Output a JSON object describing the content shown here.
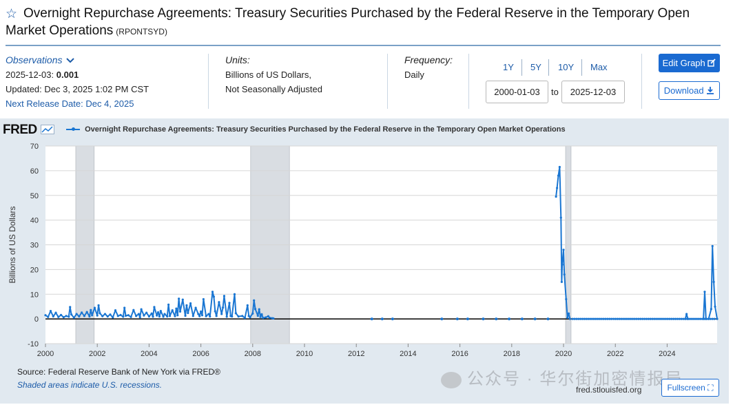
{
  "header": {
    "title_line1": "Overnight Repurchase Agreements: Treasury Securities Purchased by the Federal Reserve in the Temporary Open",
    "title_line2": "Market Operations",
    "series_id": "(RPONTSYD)"
  },
  "observations": {
    "label": "Observations",
    "date": "2025-12-03:",
    "value": "0.001",
    "updated": "Updated: Dec 3, 2025 1:02 PM CST",
    "next_release": "Next Release Date: Dec 4, 2025"
  },
  "units": {
    "label": "Units:",
    "line1": "Billions of US Dollars,",
    "line2": "Not Seasonally Adjusted"
  },
  "frequency": {
    "label": "Frequency:",
    "value": "Daily"
  },
  "range": {
    "links": [
      "1Y",
      "5Y",
      "10Y",
      "Max"
    ],
    "start": "2000-01-03",
    "to": "to",
    "end": "2025-12-03"
  },
  "buttons": {
    "edit": "Edit Graph",
    "download": "Download",
    "fullscreen": "Fullscreen"
  },
  "chart_header": {
    "logo": "FRED",
    "legend": "Overnight Repurchase Agreements: Treasury Securities Purchased by the Federal Reserve in the Temporary Open Market Operations"
  },
  "footer": {
    "source": "Source: Federal Reserve Bank of New York via FRED®",
    "shaded": "Shaded areas indicate U.S. recessions.",
    "url": "fred.stlouisfed.org",
    "watermark": "公众号 · 华尔街加密情报局"
  },
  "colors": {
    "series": "#1a76d2",
    "accent": "#1a6ad1",
    "panel": "#e1e9f0",
    "recession": "#d9dde2"
  },
  "chart_data": {
    "type": "line",
    "ylabel": "Billions of US Dollars",
    "xlabel": "",
    "xlim": [
      2000.0,
      2025.93
    ],
    "ylim": [
      -10,
      70
    ],
    "x_ticks": [
      "2000",
      "2002",
      "2004",
      "2006",
      "2008",
      "2010",
      "2012",
      "2014",
      "2016",
      "2018",
      "2020",
      "2022",
      "2024"
    ],
    "y_ticks": [
      "-10",
      "0",
      "10",
      "20",
      "30",
      "40",
      "50",
      "60",
      "70"
    ],
    "grid": true,
    "legend_position": "top-left",
    "recessions": [
      [
        2001.17,
        2001.88
      ],
      [
        2007.92,
        2009.42
      ],
      [
        2020.08,
        2020.29
      ]
    ],
    "series": [
      {
        "name": "Overnight Repurchase Agreements: Treasury Securities Purchased by the Federal Reserve in the Temporary Open Market Operations",
        "points": [
          [
            2000.0,
            1.5
          ],
          [
            2000.1,
            0.8
          ],
          [
            2000.2,
            3.2
          ],
          [
            2000.3,
            1.0
          ],
          [
            2000.4,
            2.5
          ],
          [
            2000.5,
            0.8
          ],
          [
            2000.6,
            1.6
          ],
          [
            2000.7,
            0.7
          ],
          [
            2000.8,
            1.2
          ],
          [
            2000.9,
            0.9
          ],
          [
            2000.95,
            4.8
          ],
          [
            2001.0,
            1.8
          ],
          [
            2001.1,
            0.5
          ],
          [
            2001.2,
            2.0
          ],
          [
            2001.3,
            1.0
          ],
          [
            2001.4,
            2.6
          ],
          [
            2001.5,
            1.2
          ],
          [
            2001.6,
            2.8
          ],
          [
            2001.7,
            1.0
          ],
          [
            2001.75,
            3.6
          ],
          [
            2001.8,
            1.5
          ],
          [
            2001.9,
            4.5
          ],
          [
            2002.0,
            1.4
          ],
          [
            2002.05,
            5.5
          ],
          [
            2002.1,
            2.3
          ],
          [
            2002.2,
            1.1
          ],
          [
            2002.3,
            2.0
          ],
          [
            2002.4,
            1.0
          ],
          [
            2002.5,
            1.8
          ],
          [
            2002.6,
            0.6
          ],
          [
            2002.7,
            3.5
          ],
          [
            2002.8,
            1.2
          ],
          [
            2002.9,
            1.6
          ],
          [
            2003.0,
            0.9
          ],
          [
            2003.05,
            4.5
          ],
          [
            2003.1,
            1.3
          ],
          [
            2003.2,
            1.5
          ],
          [
            2003.3,
            0.8
          ],
          [
            2003.4,
            3.6
          ],
          [
            2003.5,
            1.2
          ],
          [
            2003.6,
            2.0
          ],
          [
            2003.65,
            0.7
          ],
          [
            2003.7,
            3.9
          ],
          [
            2003.8,
            1.4
          ],
          [
            2003.9,
            2.5
          ],
          [
            2004.0,
            1.0
          ],
          [
            2004.1,
            2.2
          ],
          [
            2004.15,
            0.9
          ],
          [
            2004.2,
            4.8
          ],
          [
            2004.3,
            1.4
          ],
          [
            2004.35,
            2.7
          ],
          [
            2004.4,
            1.0
          ],
          [
            2004.45,
            3.2
          ],
          [
            2004.55,
            0.9
          ],
          [
            2004.6,
            2.0
          ],
          [
            2004.7,
            1.0
          ],
          [
            2004.75,
            5.8
          ],
          [
            2004.8,
            1.2
          ],
          [
            2004.9,
            3.5
          ],
          [
            2005.0,
            1.1
          ],
          [
            2005.05,
            4.2
          ],
          [
            2005.1,
            1.5
          ],
          [
            2005.15,
            8.2
          ],
          [
            2005.2,
            3.0
          ],
          [
            2005.3,
            7.8
          ],
          [
            2005.4,
            1.3
          ],
          [
            2005.45,
            5.5
          ],
          [
            2005.5,
            2.4
          ],
          [
            2005.6,
            6.3
          ],
          [
            2005.7,
            1.2
          ],
          [
            2005.8,
            4.5
          ],
          [
            2005.9,
            2.0
          ],
          [
            2005.95,
            1.1
          ],
          [
            2006.0,
            3.0
          ],
          [
            2006.05,
            1.5
          ],
          [
            2006.1,
            8.0
          ],
          [
            2006.2,
            1.1
          ],
          [
            2006.3,
            2.0
          ],
          [
            2006.35,
            1.0
          ],
          [
            2006.45,
            11.0
          ],
          [
            2006.5,
            9.0
          ],
          [
            2006.55,
            3.1
          ],
          [
            2006.6,
            1.2
          ],
          [
            2006.7,
            6.8
          ],
          [
            2006.8,
            2.0
          ],
          [
            2006.85,
            4.6
          ],
          [
            2006.9,
            9.3
          ],
          [
            2007.0,
            0.9
          ],
          [
            2007.1,
            6.5
          ],
          [
            2007.15,
            1.2
          ],
          [
            2007.2,
            1.0
          ],
          [
            2007.3,
            10.0
          ],
          [
            2007.35,
            2.3
          ],
          [
            2007.45,
            1.0
          ],
          [
            2007.6,
            1.2
          ],
          [
            2007.7,
            0.4
          ],
          [
            2007.8,
            5.5
          ],
          [
            2007.85,
            1.2
          ],
          [
            2007.9,
            0.7
          ],
          [
            2008.0,
            2.2
          ],
          [
            2008.05,
            7.5
          ],
          [
            2008.1,
            4.0
          ],
          [
            2008.2,
            1.3
          ],
          [
            2008.25,
            3.9
          ],
          [
            2008.3,
            0.8
          ],
          [
            2008.35,
            1.9
          ],
          [
            2008.4,
            0.4
          ],
          [
            2008.5,
            0.6
          ],
          [
            2008.6,
            1.1
          ],
          [
            2008.65,
            0.5
          ],
          [
            2008.75,
            0.3
          ],
          [
            2008.8,
            0.2
          ],
          [
            2019.71,
            49.5
          ],
          [
            2019.75,
            53.0
          ],
          [
            2019.8,
            58.0
          ],
          [
            2019.85,
            61.5
          ],
          [
            2019.9,
            41.0
          ],
          [
            2019.93,
            15.0
          ],
          [
            2019.95,
            22.0
          ],
          [
            2020.0,
            28.0
          ],
          [
            2020.03,
            18.0
          ],
          [
            2020.1,
            8.0
          ],
          [
            2020.15,
            0.5
          ],
          [
            2020.2,
            2.2
          ],
          [
            2020.25,
            0.0
          ],
          [
            2024.7,
            0.0
          ],
          [
            2024.75,
            2.0
          ],
          [
            2024.8,
            0.0
          ],
          [
            2025.4,
            0.0
          ],
          [
            2025.45,
            11.0
          ],
          [
            2025.5,
            0.0
          ],
          [
            2025.6,
            0.0
          ],
          [
            2025.7,
            4.0
          ],
          [
            2025.75,
            29.5
          ],
          [
            2025.8,
            15.0
          ],
          [
            2025.85,
            5.0
          ],
          [
            2025.93,
            0.001
          ]
        ]
      }
    ],
    "dot_markers": [
      2012.6,
      2013.0,
      2013.4,
      2015.3,
      2015.9,
      2016.3,
      2016.9,
      2017.4,
      2017.9,
      2018.4,
      2018.9,
      2019.4
    ]
  }
}
